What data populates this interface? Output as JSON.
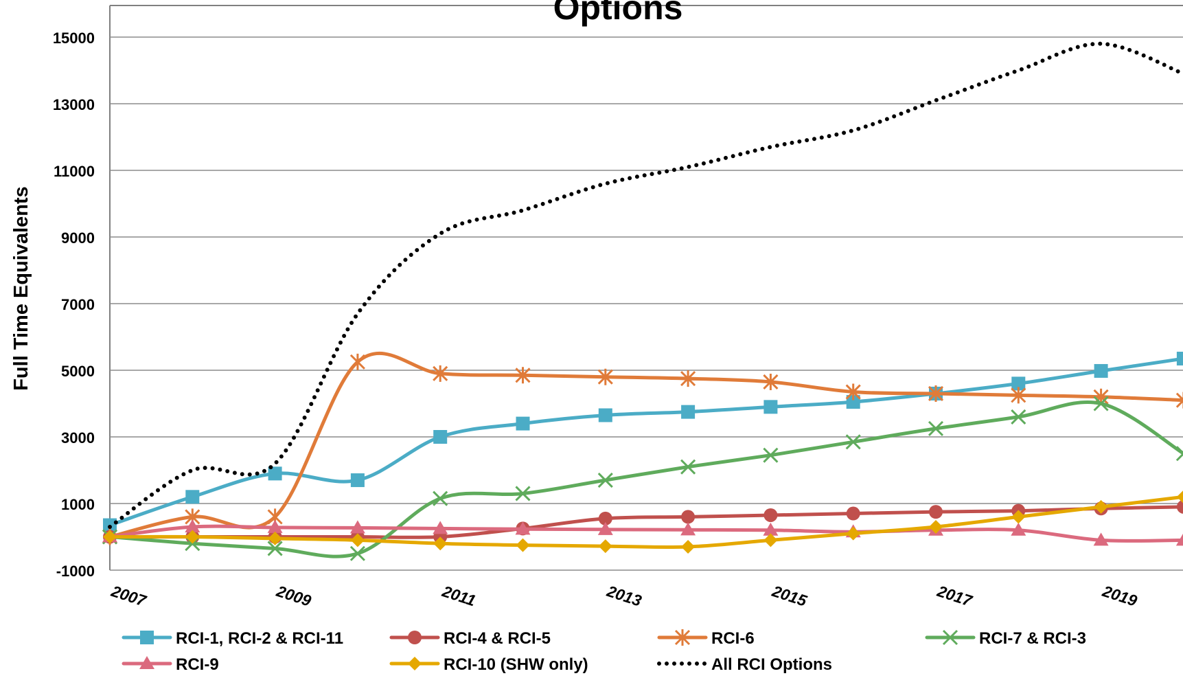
{
  "chart_data": {
    "type": "line",
    "title": "Options",
    "ylabel": "Full Time Equivalents",
    "xlabel": "",
    "x": [
      2007,
      2008,
      2009,
      2010,
      2011,
      2012,
      2013,
      2014,
      2015,
      2016,
      2017,
      2018,
      2019,
      2020
    ],
    "xtick_labels": [
      "2007",
      "2009",
      "2011",
      "2013",
      "2015",
      "2017",
      "2019"
    ],
    "xtick_values": [
      2007,
      2009,
      2011,
      2013,
      2015,
      2017,
      2019
    ],
    "ytick_labels": [
      "-1000",
      "1000",
      "3000",
      "5000",
      "7000",
      "9000",
      "11000",
      "13000",
      "15000"
    ],
    "ytick_values": [
      -1000,
      1000,
      3000,
      5000,
      7000,
      9000,
      11000,
      13000,
      15000
    ],
    "ylim": [
      -1000,
      16000
    ],
    "xlim": [
      2007,
      2020
    ],
    "grid": true,
    "legend_position": "bottom",
    "series": [
      {
        "name": "RCI-1, RCI-2 & RCI-11",
        "color": "#4bacc6",
        "marker": "square",
        "dash": false,
        "values": [
          350,
          1200,
          1900,
          1700,
          3000,
          3400,
          3650,
          3750,
          3900,
          4050,
          4300,
          4600,
          4980,
          5350
        ]
      },
      {
        "name": "RCI-4 & RCI-5",
        "color": "#c0504d",
        "marker": "circle",
        "dash": false,
        "values": [
          0,
          0,
          0,
          0,
          0,
          250,
          550,
          600,
          650,
          700,
          750,
          780,
          850,
          900
        ]
      },
      {
        "name": "RCI-6",
        "color": "#e07b39",
        "marker": "asterisk",
        "dash": false,
        "values": [
          0,
          600,
          600,
          5250,
          4900,
          4850,
          4800,
          4750,
          4650,
          4350,
          4300,
          4250,
          4200,
          4100
        ]
      },
      {
        "name": "RCI-7 & RCI-3",
        "color": "#5fab5c",
        "marker": "x",
        "dash": false,
        "values": [
          0,
          -200,
          -350,
          -500,
          1150,
          1300,
          1700,
          2100,
          2450,
          2850,
          3250,
          3600,
          4000,
          2500
        ]
      },
      {
        "name": "RCI-9",
        "color": "#db6a7e",
        "marker": "triangle",
        "dash": false,
        "values": [
          0,
          300,
          280,
          270,
          250,
          230,
          220,
          210,
          200,
          150,
          200,
          200,
          -100,
          -100
        ]
      },
      {
        "name": "RCI-10 (SHW only)",
        "color": "#e5a800",
        "marker": "diamond",
        "dash": false,
        "values": [
          0,
          0,
          -50,
          -100,
          -200,
          -250,
          -280,
          -300,
          -100,
          100,
          300,
          600,
          900,
          1200
        ]
      },
      {
        "name": "All RCI Options",
        "color": "#000000",
        "marker": "none",
        "dash": true,
        "values": [
          300,
          2000,
          2200,
          6700,
          9100,
          9800,
          10600,
          11100,
          11700,
          12200,
          13100,
          14000,
          14800,
          13900
        ]
      }
    ]
  }
}
